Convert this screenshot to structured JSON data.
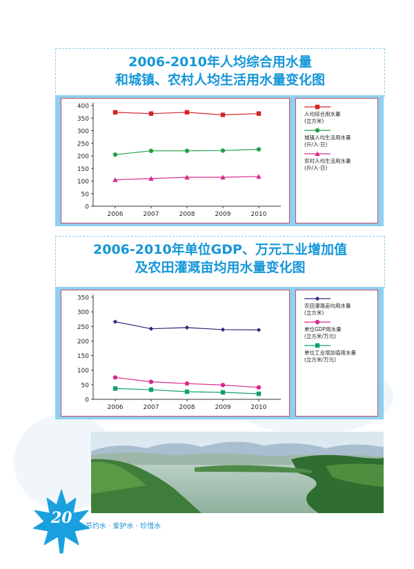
{
  "chart_data": [
    {
      "type": "line",
      "title": "2006-2010年人均综合用水量 和城镇、农村人均生活用水量变化图",
      "title_lines": [
        "2006-2010年人均综合用水量",
        "和城镇、农村人均生活用水量变化图"
      ],
      "categories": [
        "2006",
        "2007",
        "2008",
        "2009",
        "2010"
      ],
      "ylim": [
        0,
        400
      ],
      "yticks": [
        "0",
        "50",
        "100",
        "150",
        "200",
        "250",
        "300",
        "350",
        "400"
      ],
      "grid": false,
      "legend_position": "right",
      "series": [
        {
          "name": "人均综合用水量(立方米)",
          "legend_lines": [
            "人均综合用水量",
            "(立方米)"
          ],
          "marker": "square",
          "color": "#d42428",
          "values": [
            373,
            368,
            373,
            363,
            368
          ]
        },
        {
          "name": "城镇人均生活用水量(升/人·日)",
          "legend_lines": [
            "城镇人均生活用水量",
            "(升/人·日)"
          ],
          "marker": "circle",
          "color": "#22a04a",
          "values": [
            205,
            220,
            220,
            221,
            226
          ]
        },
        {
          "name": "农村人均生活用水量(升/人·日)",
          "legend_lines": [
            "农村人均生活用水量",
            "(升/人·日)"
          ],
          "marker": "triangle",
          "color": "#d9288c",
          "values": [
            105,
            110,
            115,
            115,
            118
          ]
        }
      ]
    },
    {
      "type": "line",
      "title": "2006-2010年单位GDP、万元工业增加值 及农田灌溉亩均用水量变化图",
      "title_lines": [
        "2006-2010年单位GDP、万元工业增加值",
        "及农田灌溉亩均用水量变化图"
      ],
      "categories": [
        "2006",
        "2007",
        "2008",
        "2009",
        "2010"
      ],
      "ylim": [
        0,
        350
      ],
      "yticks": [
        "0",
        "50",
        "100",
        "150",
        "200",
        "250",
        "300",
        "350"
      ],
      "grid": false,
      "legend_position": "right",
      "series": [
        {
          "name": "农田灌溉亩均用水量(立方米)",
          "legend_lines": [
            "农田灌溉亩均用水量",
            "(立方米)"
          ],
          "marker": "diamond",
          "color": "#2a2a7a",
          "values": [
            266,
            242,
            246,
            239,
            238
          ]
        },
        {
          "name": "单位GDP用水量(立方米/万元)",
          "legend_lines": [
            "单位GDP用水量",
            "(立方米/万元)"
          ],
          "marker": "circle",
          "color": "#d9288c",
          "values": [
            75,
            60,
            54,
            49,
            41
          ]
        },
        {
          "name": "单位工业增加值用水量(立方米/万元)",
          "legend_lines": [
            "单位工业增加值用水量",
            "(立方米/万元)"
          ],
          "marker": "square",
          "color": "#12a06a",
          "values": [
            37,
            33,
            26,
            24,
            19
          ]
        }
      ]
    }
  ],
  "footer": {
    "page_number": "20",
    "slogan": "节约水 · 爱护水 · 珍惜水"
  },
  "colors": {
    "accent": "#1596d8",
    "panel_bg": "#8fd0ee",
    "frame_border": "#c44b6a"
  }
}
